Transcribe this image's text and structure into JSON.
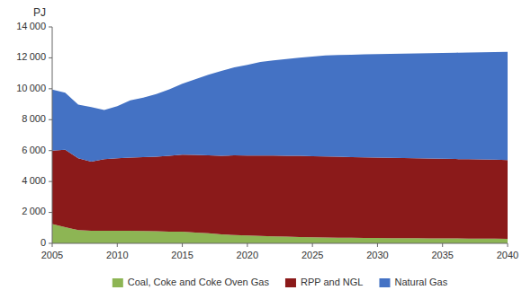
{
  "chart_data": {
    "type": "area",
    "stacked": true,
    "x": [
      2005,
      2006,
      2007,
      2008,
      2009,
      2010,
      2011,
      2012,
      2013,
      2014,
      2015,
      2016,
      2017,
      2018,
      2019,
      2020,
      2021,
      2022,
      2023,
      2024,
      2025,
      2026,
      2027,
      2028,
      2029,
      2030,
      2031,
      2032,
      2033,
      2034,
      2035,
      2036,
      2037,
      2038,
      2039,
      2040
    ],
    "series": [
      {
        "name": "Coal, Coke and Coke Oven Gas",
        "color": "#8DB554",
        "values": [
          1250,
          1050,
          850,
          820,
          820,
          820,
          810,
          800,
          780,
          760,
          750,
          700,
          650,
          580,
          540,
          510,
          480,
          450,
          430,
          410,
          390,
          380,
          370,
          360,
          355,
          345,
          340,
          335,
          330,
          325,
          320,
          315,
          310,
          305,
          300,
          295
        ]
      },
      {
        "name": "RPP and NGL",
        "color": "#8B1A1A",
        "values": [
          4750,
          5000,
          4650,
          4470,
          4620,
          4680,
          4740,
          4780,
          4830,
          4900,
          4980,
          5020,
          5050,
          5080,
          5150,
          5170,
          5200,
          5230,
          5240,
          5250,
          5250,
          5240,
          5230,
          5220,
          5210,
          5200,
          5190,
          5180,
          5170,
          5160,
          5150,
          5140,
          5130,
          5120,
          5110,
          5100
        ]
      },
      {
        "name": "Natural Gas",
        "color": "#4472C4",
        "values": [
          3950,
          3700,
          3480,
          3530,
          3180,
          3370,
          3700,
          3850,
          4050,
          4300,
          4600,
          4900,
          5200,
          5500,
          5700,
          5870,
          6050,
          6150,
          6250,
          6350,
          6450,
          6530,
          6580,
          6620,
          6660,
          6700,
          6730,
          6760,
          6790,
          6820,
          6850,
          6880,
          6910,
          6940,
          6970,
          7000
        ]
      }
    ],
    "ylabel": "PJ",
    "xlim": [
      2005,
      2040
    ],
    "xticks": [
      2005,
      2010,
      2015,
      2020,
      2025,
      2030,
      2035,
      2040
    ],
    "ylim": [
      0,
      14000
    ],
    "yticks": [
      0,
      {
        "value": 2000,
        "label": "2 000"
      },
      {
        "value": 4000,
        "label": "4 000"
      },
      {
        "value": 6000,
        "label": "6 000"
      },
      {
        "value": 8000,
        "label": "8 000"
      },
      {
        "value": 10000,
        "label": "10 000"
      },
      {
        "value": 12000,
        "label": "12 000"
      },
      {
        "value": 14000,
        "label": "14 000"
      }
    ],
    "grid": false,
    "legend": "bottom"
  }
}
